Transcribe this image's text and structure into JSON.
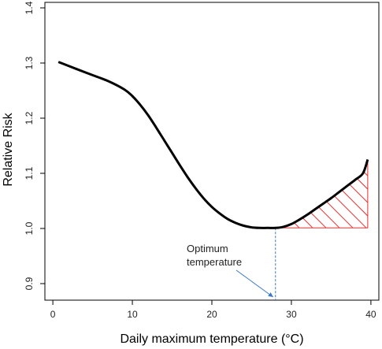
{
  "chart_data": {
    "type": "line",
    "xlabel": "Daily maximum temperature (°C)",
    "ylabel": "Relative Risk",
    "xlim": [
      -1,
      41
    ],
    "ylim": [
      0.87,
      1.41
    ],
    "x_ticks": [
      "0",
      "10",
      "20",
      "30",
      "40"
    ],
    "y_ticks": [
      "0.9",
      "1.0",
      "1.1",
      "1.2",
      "1.3",
      "1.4"
    ],
    "series": [
      {
        "x": [
          0.7,
          3,
          5,
          7,
          9,
          10,
          11,
          12,
          13,
          14,
          15,
          16,
          17,
          18,
          19,
          20,
          21,
          22,
          23,
          24,
          25,
          26,
          27,
          28,
          29,
          30,
          31,
          32,
          33,
          34,
          35,
          36,
          37,
          38,
          39,
          39.6
        ],
        "y": [
          1.302,
          1.289,
          1.278,
          1.267,
          1.252,
          1.24,
          1.224,
          1.205,
          1.183,
          1.16,
          1.137,
          1.114,
          1.092,
          1.072,
          1.054,
          1.039,
          1.027,
          1.017,
          1.01,
          1.005,
          1.002,
          1.001,
          1.001,
          1.001,
          1.003,
          1.008,
          1.016,
          1.025,
          1.035,
          1.045,
          1.055,
          1.066,
          1.077,
          1.088,
          1.1,
          1.125
        ],
        "color": "#000000"
      }
    ],
    "optimum": {
      "x": 28,
      "y": 1.001
    },
    "shaded_region": {
      "x_from": 28,
      "x_to": 39.6,
      "baseline": 1.001,
      "color": "#e8312f"
    },
    "annotation": {
      "lines": [
        "Optimum",
        "temperature"
      ],
      "arrow_color": "#3a78c3"
    }
  }
}
